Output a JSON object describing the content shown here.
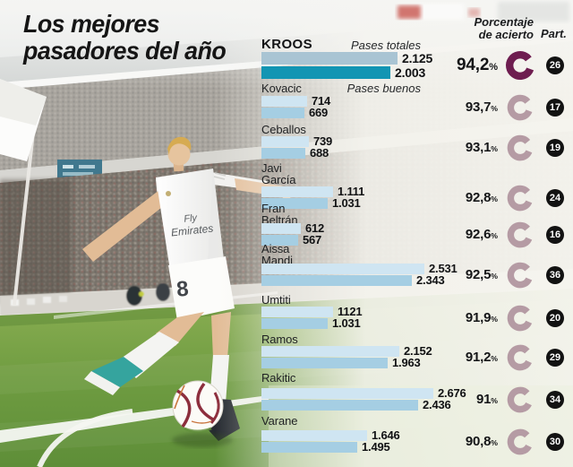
{
  "ui": {
    "title_line1": "Los mejores",
    "title_line2": "pasadores del año",
    "col_accuracy_line1": "Porcentaje",
    "col_accuracy_line2": "de acierto",
    "col_participation": "Part.",
    "series_total_label": "Pases totales",
    "series_good_label": "Pases buenos",
    "percent_sign": "%"
  },
  "colors": {
    "bar_total": "#cfe5f2",
    "bar_good": "#a5cee3",
    "bar_total_highlight": "#a9c4d3",
    "bar_good_highlight": "#1295b3",
    "donut": "#b59ba4",
    "donut_highlight": "#6e1d50",
    "badge_bg": "#121212",
    "text": "#141517"
  },
  "chart_data": {
    "type": "bar",
    "orientation": "horizontal",
    "title": "Los mejores pasadores del año",
    "series_labels": [
      "Pases totales",
      "Pases buenos"
    ],
    "extra_columns": [
      "Porcentaje de acierto",
      "Part."
    ],
    "value_axis_max": 2676,
    "players": [
      {
        "name_lines": [
          "KROOS"
        ],
        "total_label": "2.125",
        "total": 2125,
        "good_label": "2.003",
        "good": 2003,
        "accuracy_label": "94,2",
        "accuracy": 94.2,
        "matches": "26",
        "highlight": true
      },
      {
        "name_lines": [
          "Kovacic"
        ],
        "total_label": "714",
        "total": 714,
        "good_label": "669",
        "good": 669,
        "accuracy_label": "93,7",
        "accuracy": 93.7,
        "matches": "17",
        "highlight": false
      },
      {
        "name_lines": [
          "Ceballos"
        ],
        "total_label": "739",
        "total": 739,
        "good_label": "688",
        "good": 688,
        "accuracy_label": "93,1",
        "accuracy": 93.1,
        "matches": "19",
        "highlight": false
      },
      {
        "name_lines": [
          "Javi",
          "García"
        ],
        "total_label": "1.111",
        "total": 1111,
        "good_label": "1.031",
        "good": 1031,
        "accuracy_label": "92,8",
        "accuracy": 92.8,
        "matches": "24",
        "highlight": false
      },
      {
        "name_lines": [
          "Fran",
          "Beltrán"
        ],
        "total_label": "612",
        "total": 612,
        "good_label": "567",
        "good": 567,
        "accuracy_label": "92,6",
        "accuracy": 92.6,
        "matches": "16",
        "highlight": false
      },
      {
        "name_lines": [
          "Aissa",
          "Mandi"
        ],
        "total_label": "2.531",
        "total": 2531,
        "good_label": "2.343",
        "good": 2343,
        "accuracy_label": "92,5",
        "accuracy": 92.5,
        "matches": "36",
        "highlight": false
      },
      {
        "name_lines": [
          "Umtiti"
        ],
        "total_label": "1121",
        "total": 1121,
        "good_label": "1.031",
        "good": 1031,
        "accuracy_label": "91,9",
        "accuracy": 91.9,
        "matches": "20",
        "highlight": false
      },
      {
        "name_lines": [
          "Ramos"
        ],
        "total_label": "2.152",
        "total": 2152,
        "good_label": "1.963",
        "good": 1963,
        "accuracy_label": "91,2",
        "accuracy": 91.2,
        "matches": "29",
        "highlight": false
      },
      {
        "name_lines": [
          "Rakitic"
        ],
        "total_label": "2.676",
        "total": 2676,
        "good_label": "2.436",
        "good": 2436,
        "accuracy_label": "91",
        "accuracy": 91.0,
        "matches": "34",
        "highlight": false
      },
      {
        "name_lines": [
          "Varane"
        ],
        "total_label": "1.646",
        "total": 1646,
        "good_label": "1.495",
        "good": 1495,
        "accuracy_label": "90,8",
        "accuracy": 90.8,
        "matches": "30",
        "highlight": false
      }
    ]
  }
}
